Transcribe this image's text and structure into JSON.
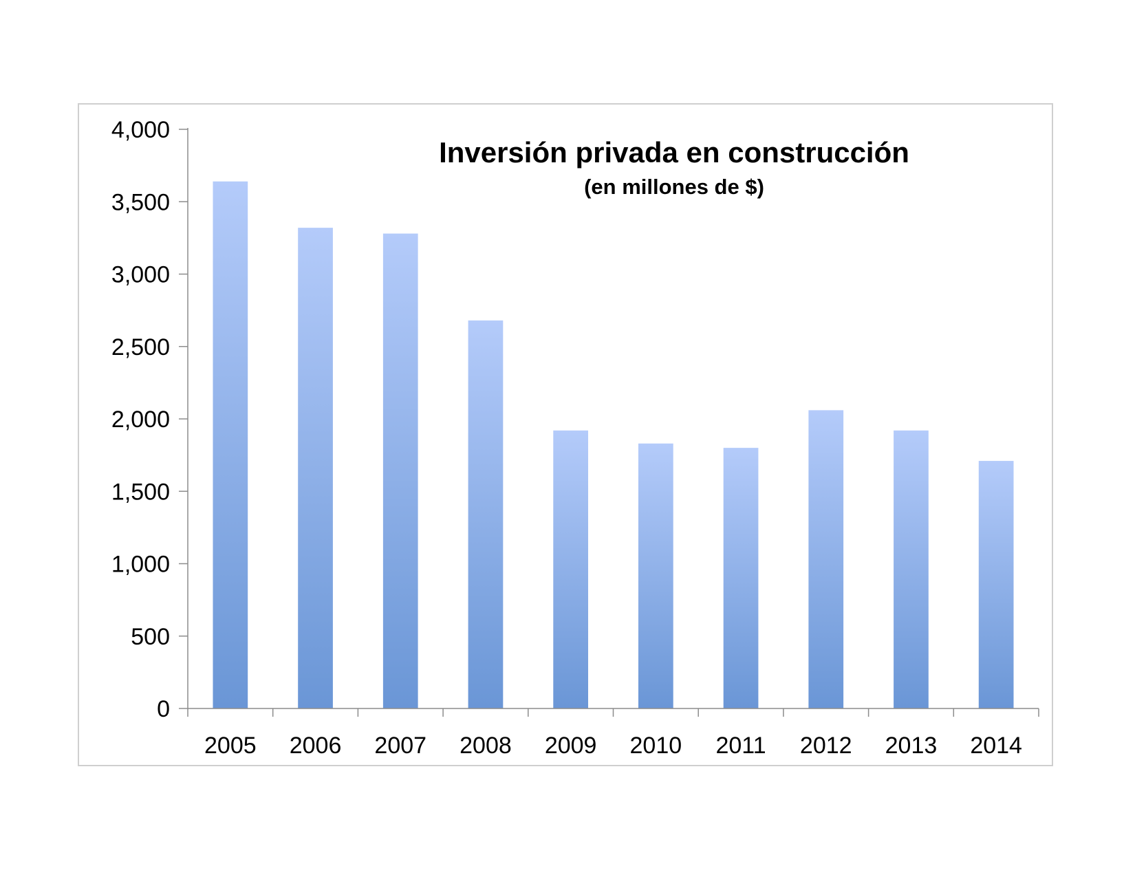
{
  "chart_data": {
    "type": "bar",
    "title": "Inversión privada en construcción",
    "subtitle": "(en millones de $)",
    "xlabel": "",
    "ylabel": "",
    "categories": [
      "2005",
      "2006",
      "2007",
      "2008",
      "2009",
      "2010",
      "2011",
      "2012",
      "2013",
      "2014"
    ],
    "values": [
      3640,
      3320,
      3280,
      2680,
      1920,
      1830,
      1800,
      2060,
      1920,
      1710
    ],
    "ylim": [
      0,
      4000
    ],
    "yticks": [
      0,
      500,
      1000,
      1500,
      2000,
      2500,
      3000,
      3500,
      4000
    ],
    "ytick_labels": [
      "0",
      "500",
      "1,000",
      "1,500",
      "2,000",
      "2,500",
      "3,000",
      "3,500",
      "4,000"
    ],
    "grid": false,
    "legend": "none",
    "colors": {
      "bar_top": "#b4cbfa",
      "bar_bottom": "#6a96d6",
      "axis": "#8c8c8c",
      "frame": "#cfcfcf"
    }
  }
}
